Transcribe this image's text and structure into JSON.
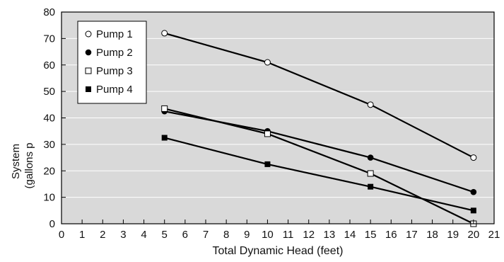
{
  "chart_data": {
    "type": "line",
    "xlabel": "Total Dynamic Head (feet)",
    "ylabel_line1": "System",
    "ylabel_line2": "(gallons p",
    "xlim": [
      0,
      21
    ],
    "ylim": [
      0,
      80
    ],
    "xticks": [
      0,
      1,
      2,
      3,
      4,
      5,
      6,
      7,
      8,
      9,
      10,
      11,
      12,
      13,
      14,
      15,
      16,
      17,
      18,
      19,
      20,
      21
    ],
    "yticks": [
      0,
      10,
      20,
      30,
      40,
      50,
      60,
      70,
      80
    ],
    "grid": true,
    "legend_position": "top-left",
    "colors": {
      "plot_bg": "#d9d9d9",
      "grid": "#ffffff",
      "line": "#000000"
    },
    "series": [
      {
        "name": "Pump 1",
        "marker": "open-circle",
        "x": [
          5,
          10,
          15,
          20
        ],
        "y": [
          72,
          61,
          45,
          25
        ]
      },
      {
        "name": "Pump 2",
        "marker": "filled-circle",
        "x": [
          5,
          10,
          15,
          20
        ],
        "y": [
          42.5,
          35,
          25,
          12
        ]
      },
      {
        "name": "Pump 3",
        "marker": "open-square",
        "x": [
          5,
          10,
          15,
          20
        ],
        "y": [
          43.5,
          34,
          19,
          0
        ]
      },
      {
        "name": "Pump 4",
        "marker": "filled-square",
        "x": [
          5,
          10,
          15,
          20
        ],
        "y": [
          32.5,
          22.5,
          14,
          5
        ]
      }
    ]
  }
}
